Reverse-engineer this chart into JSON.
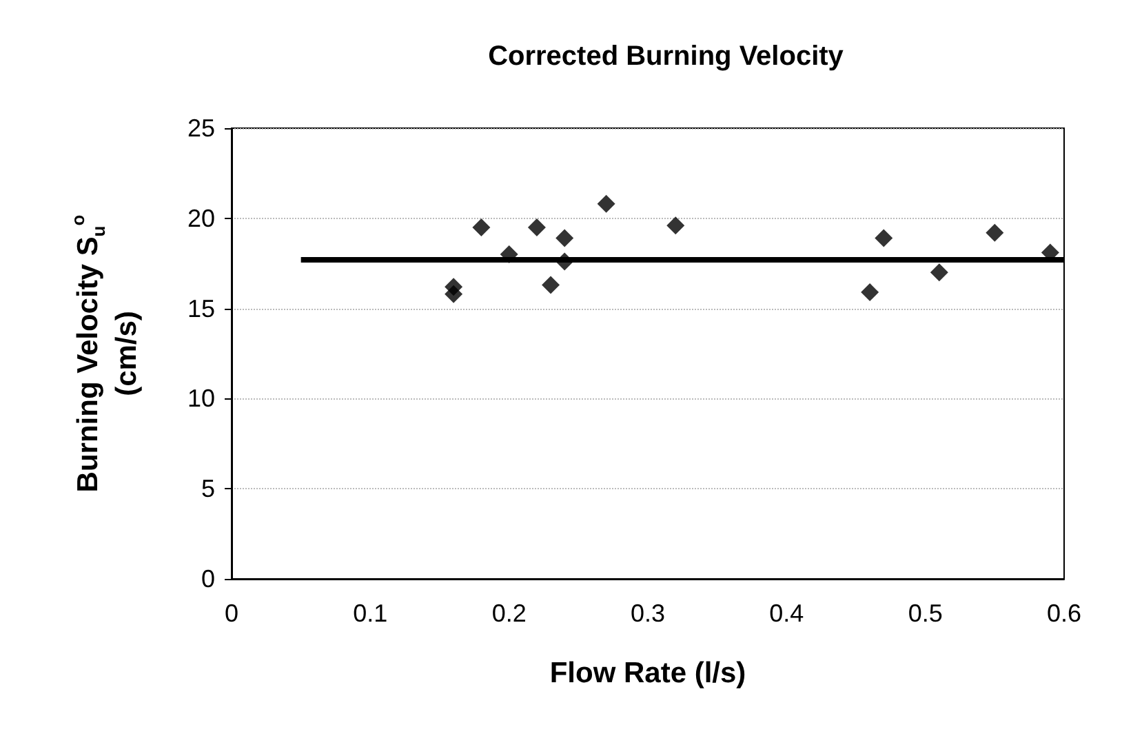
{
  "chart_data": {
    "type": "scatter",
    "title": "Corrected Burning Velocity",
    "xlabel": "Flow Rate (l/s)",
    "ylabel": "Burning Velocity S$_{u}$$^{o}$\n(cm/s)",
    "xlim": [
      0,
      0.6
    ],
    "xticks": [
      0,
      0.1,
      0.2,
      0.3,
      0.4,
      0.5,
      0.6
    ],
    "ylim": [
      0,
      25
    ],
    "yticks": [
      0,
      5,
      10,
      15,
      20,
      25
    ],
    "grid": "y",
    "series": [
      {
        "marker": "diamond",
        "color": "#000000",
        "x": [
          0.16,
          0.16,
          0.18,
          0.2,
          0.22,
          0.23,
          0.24,
          0.24,
          0.27,
          0.32,
          0.46,
          0.47,
          0.51,
          0.55,
          0.59
        ],
        "values": [
          16.2,
          15.8,
          19.5,
          18.0,
          19.5,
          16.3,
          18.9,
          17.6,
          20.8,
          19.6,
          15.9,
          18.9,
          17.0,
          19.2,
          18.1
        ]
      },
      {
        "type": "line",
        "marker": "none",
        "color": "#000000",
        "line_style": "solid",
        "x": [
          0.05,
          0.6
        ],
        "values": [
          17.7,
          17.7
        ]
      }
    ]
  }
}
